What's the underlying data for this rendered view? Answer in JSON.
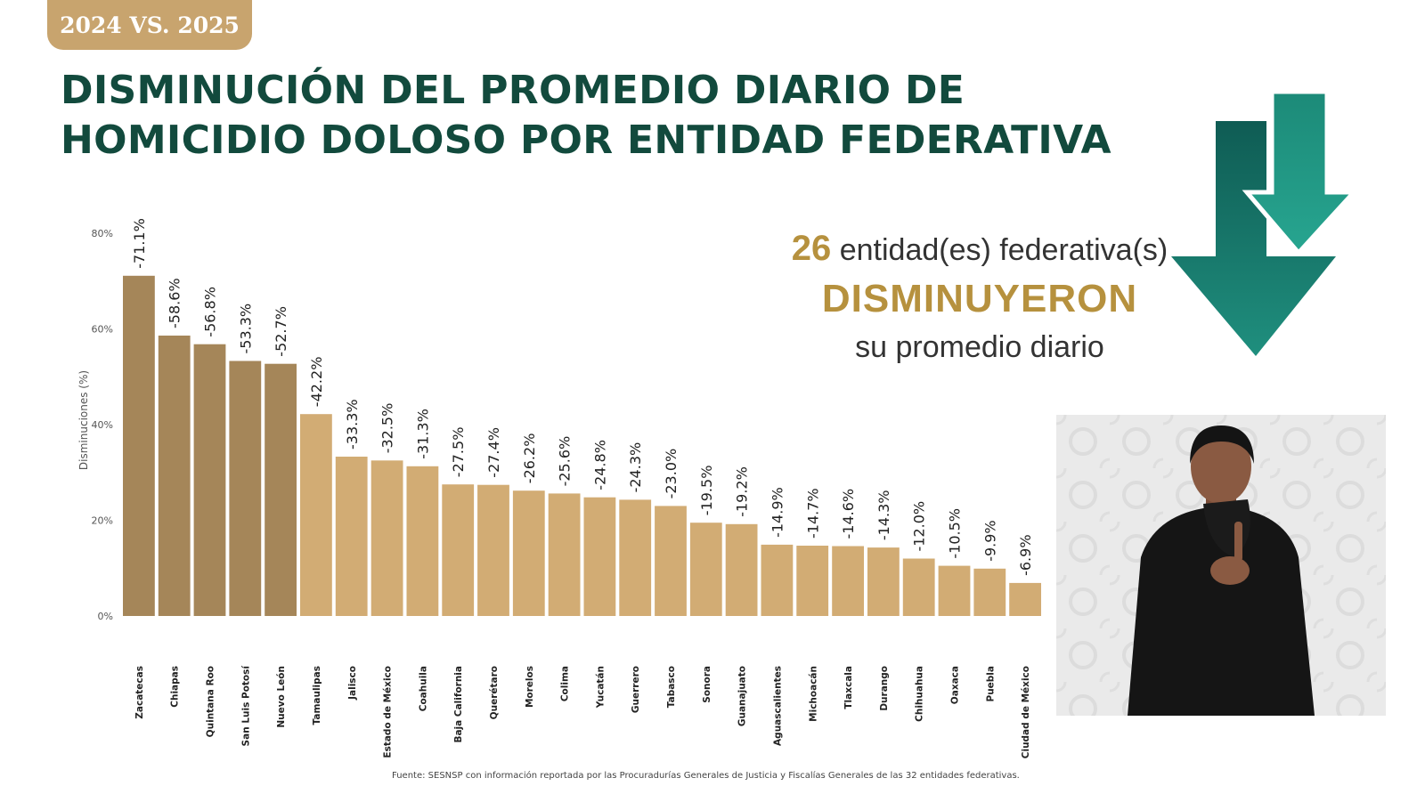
{
  "badge": "2024 VS. 2025",
  "title": {
    "line1": "DISMINUCIÓN DEL PROMEDIO DIARIO DE",
    "line2": "HOMICIDIO DOLOSO POR ENTIDAD FEDERATIVA"
  },
  "summary": {
    "count": "26",
    "line1_rest": "entidad(es) federativa(s)",
    "line2": "DISMINUYERON",
    "line3": "su promedio diario"
  },
  "source": "Fuente: SESNSP con información reportada por las Procuradurías Generales de Justicia y Fiscalías Generales de las 32 entidades federativas.",
  "colors": {
    "title": "#124a3d",
    "accent_gold": "#b6913e",
    "badge": "#c8a46e",
    "bar_dark": "#a58659",
    "bar_light": "#d2ac74",
    "arrow_dark": "#0f5c54",
    "arrow_light": "#1a8a7a"
  },
  "icons": [
    "down-arrows-icon"
  ],
  "chart_data": {
    "type": "bar",
    "ylabel": "Disminuciones (%)",
    "ylim": [
      0,
      80
    ],
    "yticks": [
      0,
      20,
      40,
      60,
      80
    ],
    "ytick_labels": [
      "0%",
      "20%",
      "40%",
      "60%",
      "80%"
    ],
    "grid": false,
    "categories": [
      "Zacatecas",
      "Chiapas",
      "Quintana Roo",
      "San Luis Potosí",
      "Nuevo León",
      "Tamaulipas",
      "Jalisco",
      "Estado de México",
      "Coahuila",
      "Baja California",
      "Querétaro",
      "Morelos",
      "Colima",
      "Yucatán",
      "Guerrero",
      "Tabasco",
      "Sonora",
      "Guanajuato",
      "Aguascalientes",
      "Michoacán",
      "Tlaxcala",
      "Durango",
      "Chihuahua",
      "Oaxaca",
      "Puebla",
      "Ciudad de México"
    ],
    "values": [
      71.1,
      58.6,
      56.8,
      53.3,
      52.7,
      42.2,
      33.3,
      32.5,
      31.3,
      27.5,
      27.4,
      26.2,
      25.6,
      24.8,
      24.3,
      23.0,
      19.5,
      19.2,
      14.9,
      14.7,
      14.6,
      14.3,
      12.0,
      10.5,
      9.9,
      6.9
    ],
    "data_labels": [
      "-71.1%",
      "-58.6%",
      "-56.8%",
      "-53.3%",
      "-52.7%",
      "-42.2%",
      "-33.3%",
      "-32.5%",
      "-31.3%",
      "-27.5%",
      "-27.4%",
      "-26.2%",
      "-25.6%",
      "-24.8%",
      "-24.3%",
      "-23.0%",
      "-19.5%",
      "-19.2%",
      "-14.9%",
      "-14.7%",
      "-14.6%",
      "-14.3%",
      "-12.0%",
      "-10.5%",
      "-9.9%",
      "-6.9%"
    ],
    "highlight_count": 5
  }
}
